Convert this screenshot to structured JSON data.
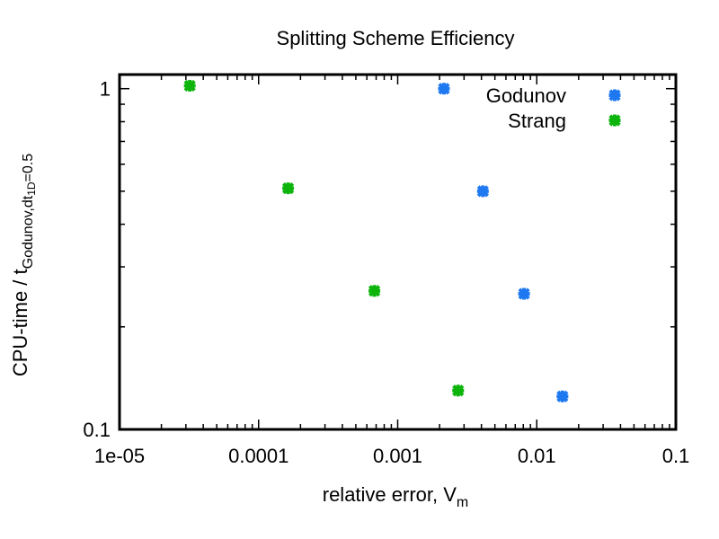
{
  "chart_data": {
    "type": "scatter",
    "title": "Splitting Scheme Efficiency",
    "xlabel": "relative error, V",
    "xlabel_sub": "m",
    "ylabel": "CPU-time / t",
    "ylabel_sub": "Godunov,dt",
    "ylabel_subsub": "1D",
    "ylabel_tail": "=0.5",
    "x_scale": "log",
    "y_scale": "log",
    "xlim": [
      1e-05,
      0.1
    ],
    "ylim": [
      0.1,
      1.1
    ],
    "x_ticks": [
      {
        "value": 1e-05,
        "label": "1e-05"
      },
      {
        "value": 0.0001,
        "label": "0.0001"
      },
      {
        "value": 0.001,
        "label": "0.001"
      },
      {
        "value": 0.01,
        "label": "0.01"
      },
      {
        "value": 0.1,
        "label": "0.1"
      }
    ],
    "y_ticks": [
      {
        "value": 1,
        "label": "1"
      },
      {
        "value": 0.1,
        "label": "0.1"
      }
    ],
    "grid": false,
    "legend_position": "top-right",
    "series": [
      {
        "name": "Godunov",
        "color": "#1e78f0",
        "marker": "asterisk",
        "points": [
          {
            "x": 0.00215,
            "y": 1.0
          },
          {
            "x": 0.0041,
            "y": 0.5
          },
          {
            "x": 0.0081,
            "y": 0.25
          },
          {
            "x": 0.0153,
            "y": 0.125
          }
        ]
      },
      {
        "name": "Strang",
        "color": "#0cb40c",
        "marker": "asterisk",
        "points": [
          {
            "x": 3.2e-05,
            "y": 1.02
          },
          {
            "x": 0.000163,
            "y": 0.51
          },
          {
            "x": 0.00068,
            "y": 0.255
          },
          {
            "x": 0.00272,
            "y": 0.13
          }
        ]
      }
    ]
  }
}
